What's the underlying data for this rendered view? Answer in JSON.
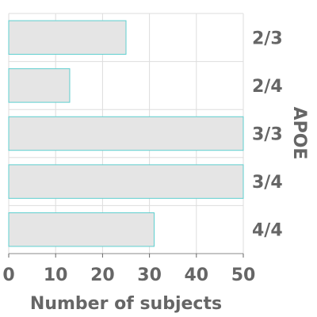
{
  "chart_data": {
    "type": "bar",
    "orientation": "horizontal",
    "categories": [
      "2/3",
      "2/4",
      "3/3",
      "3/4",
      "4/4"
    ],
    "values": [
      25,
      13,
      50,
      50,
      31
    ],
    "xlabel": "Number of subjects",
    "ylabel": "APOE",
    "xlim": [
      0,
      50
    ],
    "xticks": [
      0,
      10,
      20,
      30,
      40,
      50
    ],
    "grid": true,
    "category_axis_side": "right",
    "colors": {
      "bar_fill": "#e5e5e5",
      "bar_edge": "#5ecfcf",
      "grid": "#dddddd",
      "text": "#666666"
    }
  }
}
